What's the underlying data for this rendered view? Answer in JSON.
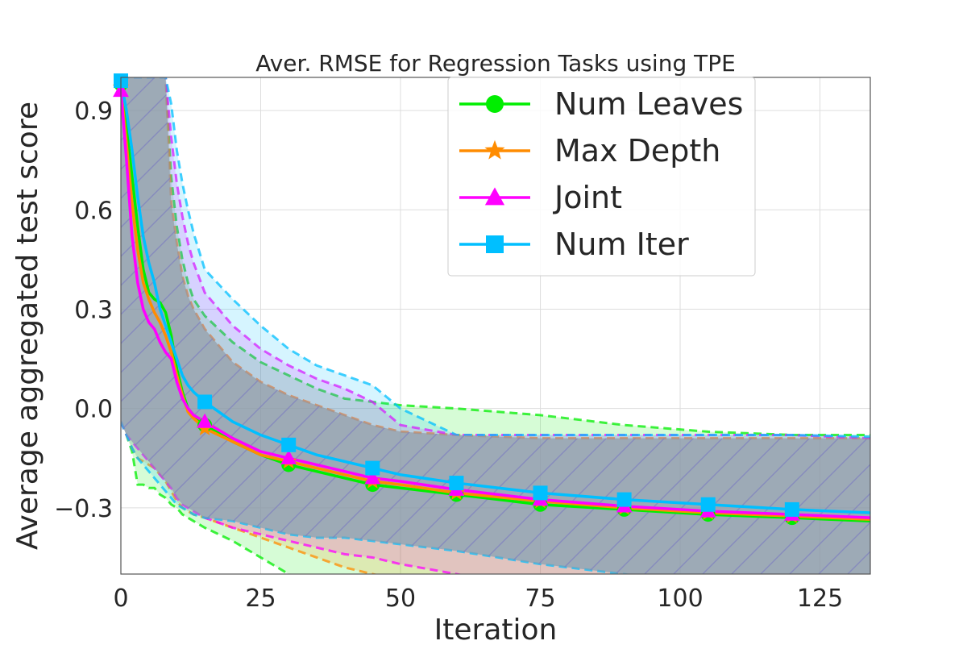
{
  "chart_data": {
    "type": "line",
    "title": "Aver. RMSE for Regression Tasks using TPE",
    "xlabel": "Iteration",
    "ylabel": "Average aggregated test score",
    "xlim": [
      0,
      134
    ],
    "ylim": [
      -0.5,
      1.0
    ],
    "xticks": [
      0,
      25,
      50,
      75,
      100,
      125
    ],
    "xtick_labels": [
      "0",
      "25",
      "50",
      "75",
      "100",
      "125"
    ],
    "yticks": [
      -0.3,
      0.0,
      0.3,
      0.6,
      0.9
    ],
    "ytick_labels": [
      "−0.3",
      "0.0",
      "0.3",
      "0.6",
      "0.9"
    ],
    "grid": true,
    "legend_position": "top-right",
    "series": [
      {
        "name": "Num Leaves",
        "color": "#00ee00",
        "marker": "circle",
        "x": [
          0,
          1,
          2,
          3,
          4,
          5,
          6,
          7,
          8,
          9,
          10,
          11,
          12,
          13,
          15,
          20,
          25,
          30,
          35,
          40,
          45,
          50,
          60,
          75,
          90,
          105,
          120,
          134
        ],
        "y": [
          0.98,
          0.85,
          0.7,
          0.55,
          0.42,
          0.35,
          0.33,
          0.32,
          0.29,
          0.22,
          0.12,
          0.05,
          0.0,
          -0.02,
          -0.05,
          -0.1,
          -0.14,
          -0.17,
          -0.19,
          -0.21,
          -0.23,
          -0.24,
          -0.26,
          -0.29,
          -0.305,
          -0.32,
          -0.33,
          -0.34
        ],
        "band_upper": [
          1.0,
          1.0,
          1.0,
          1.0,
          1.0,
          1.0,
          1.0,
          1.0,
          1.0,
          0.7,
          0.55,
          0.45,
          0.38,
          0.33,
          0.28,
          0.2,
          0.14,
          0.1,
          0.06,
          0.03,
          0.02,
          0.01,
          0.0,
          -0.02,
          -0.05,
          -0.07,
          -0.08,
          -0.08
        ],
        "band_lower": [
          -0.04,
          -0.08,
          -0.13,
          -0.23,
          -0.23,
          -0.24,
          -0.24,
          -0.26,
          -0.27,
          -0.29,
          -0.3,
          -0.32,
          -0.33,
          -0.34,
          -0.36,
          -0.4,
          -0.45,
          -0.5,
          -0.55,
          -0.6,
          -0.62,
          -0.64,
          -0.66,
          -0.68,
          -0.7,
          -0.72,
          -0.73,
          -0.74
        ]
      },
      {
        "name": "Max Depth",
        "color": "#ff8c00",
        "marker": "star",
        "x": [
          0,
          1,
          2,
          3,
          4,
          5,
          6,
          7,
          8,
          9,
          10,
          11,
          12,
          13,
          15,
          20,
          25,
          30,
          35,
          40,
          45,
          50,
          60,
          75,
          90,
          105,
          120,
          134
        ],
        "y": [
          0.97,
          0.8,
          0.62,
          0.48,
          0.38,
          0.33,
          0.29,
          0.26,
          0.22,
          0.17,
          0.1,
          0.04,
          -0.01,
          -0.03,
          -0.06,
          -0.1,
          -0.14,
          -0.16,
          -0.18,
          -0.2,
          -0.22,
          -0.23,
          -0.255,
          -0.28,
          -0.3,
          -0.315,
          -0.325,
          -0.335
        ],
        "band_upper": [
          1.0,
          1.0,
          1.0,
          1.0,
          1.0,
          1.0,
          1.0,
          1.0,
          1.0,
          0.62,
          0.5,
          0.4,
          0.34,
          0.3,
          0.24,
          0.14,
          0.08,
          0.04,
          0.01,
          -0.02,
          -0.05,
          -0.07,
          -0.08,
          -0.09,
          -0.09,
          -0.09,
          -0.09,
          -0.09
        ],
        "band_lower": [
          -0.04,
          -0.08,
          -0.12,
          -0.15,
          -0.16,
          -0.17,
          -0.18,
          -0.2,
          -0.22,
          -0.25,
          -0.28,
          -0.3,
          -0.31,
          -0.32,
          -0.33,
          -0.36,
          -0.39,
          -0.42,
          -0.45,
          -0.48,
          -0.5,
          -0.52,
          -0.55,
          -0.6,
          -0.65,
          -0.7,
          -0.72,
          -0.74
        ]
      },
      {
        "name": "Joint",
        "color": "#ff00ff",
        "marker": "triangle",
        "x": [
          0,
          1,
          2,
          3,
          4,
          5,
          6,
          7,
          8,
          9,
          10,
          11,
          12,
          13,
          15,
          20,
          25,
          30,
          35,
          40,
          45,
          50,
          60,
          75,
          90,
          105,
          120,
          134
        ],
        "y": [
          0.96,
          0.75,
          0.52,
          0.38,
          0.3,
          0.26,
          0.24,
          0.2,
          0.17,
          0.15,
          0.08,
          0.03,
          0.0,
          -0.02,
          -0.04,
          -0.09,
          -0.13,
          -0.15,
          -0.17,
          -0.19,
          -0.21,
          -0.22,
          -0.245,
          -0.275,
          -0.295,
          -0.31,
          -0.32,
          -0.33
        ],
        "band_upper": [
          1.0,
          1.0,
          1.0,
          1.0,
          1.0,
          1.0,
          1.0,
          1.0,
          1.0,
          0.82,
          0.68,
          0.58,
          0.5,
          0.44,
          0.35,
          0.25,
          0.18,
          0.13,
          0.09,
          0.06,
          0.02,
          -0.05,
          -0.08,
          -0.08,
          -0.08,
          -0.08,
          -0.08,
          -0.09
        ],
        "band_lower": [
          -0.04,
          -0.08,
          -0.1,
          -0.12,
          -0.14,
          -0.16,
          -0.18,
          -0.2,
          -0.22,
          -0.24,
          -0.27,
          -0.29,
          -0.3,
          -0.31,
          -0.33,
          -0.36,
          -0.38,
          -0.4,
          -0.42,
          -0.44,
          -0.45,
          -0.47,
          -0.5,
          -0.55,
          -0.6,
          -0.65,
          -0.7,
          -0.74
        ]
      },
      {
        "name": "Num Iter",
        "color": "#00bfff",
        "marker": "square",
        "x": [
          0,
          1,
          2,
          3,
          4,
          5,
          6,
          7,
          8,
          9,
          10,
          11,
          12,
          13,
          15,
          20,
          25,
          30,
          35,
          40,
          45,
          50,
          60,
          75,
          90,
          105,
          120,
          134
        ],
        "y": [
          0.99,
          0.9,
          0.78,
          0.64,
          0.52,
          0.44,
          0.38,
          0.3,
          0.25,
          0.2,
          0.15,
          0.1,
          0.07,
          0.05,
          0.02,
          -0.04,
          -0.08,
          -0.11,
          -0.14,
          -0.16,
          -0.18,
          -0.2,
          -0.225,
          -0.255,
          -0.275,
          -0.29,
          -0.305,
          -0.315
        ],
        "band_upper": [
          1.0,
          1.0,
          1.0,
          1.0,
          1.0,
          1.0,
          1.0,
          1.0,
          1.0,
          0.92,
          0.78,
          0.68,
          0.6,
          0.53,
          0.42,
          0.33,
          0.25,
          0.18,
          0.13,
          0.1,
          0.07,
          0.0,
          -0.08,
          -0.08,
          -0.08,
          -0.08,
          -0.08,
          -0.085
        ],
        "band_lower": [
          -0.04,
          -0.08,
          -0.12,
          -0.15,
          -0.17,
          -0.19,
          -0.21,
          -0.23,
          -0.25,
          -0.27,
          -0.29,
          -0.3,
          -0.31,
          -0.32,
          -0.33,
          -0.34,
          -0.36,
          -0.38,
          -0.39,
          -0.39,
          -0.4,
          -0.41,
          -0.43,
          -0.47,
          -0.5,
          -0.55,
          -0.6,
          -0.65
        ]
      }
    ],
    "marker_x": [
      0,
      15,
      30,
      45,
      60,
      75,
      90,
      105,
      120
    ]
  }
}
